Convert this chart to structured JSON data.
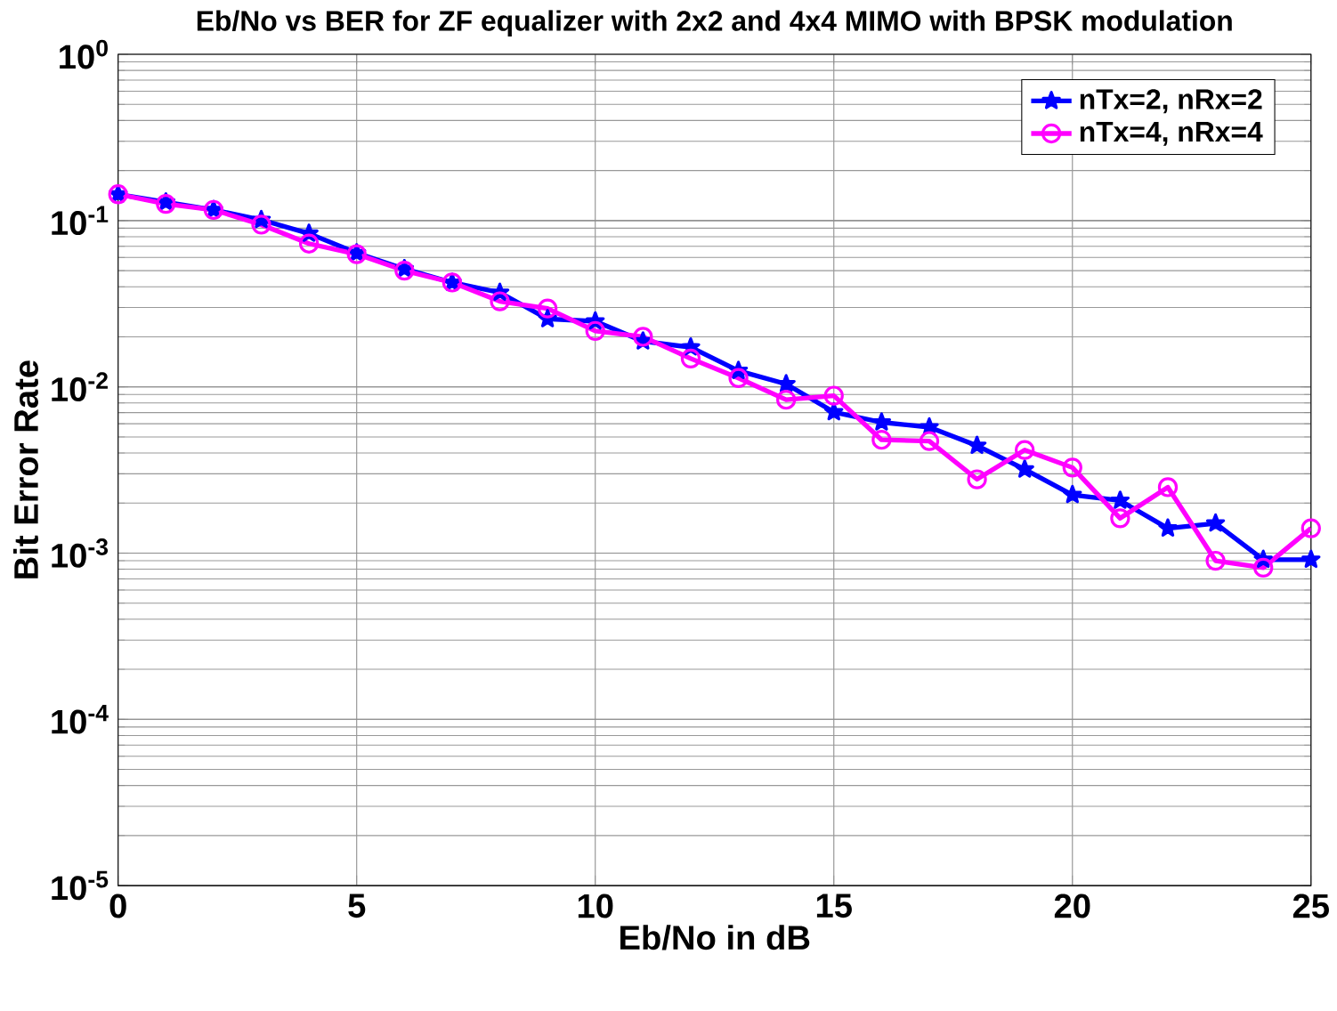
{
  "chart_data": {
    "type": "line",
    "title": "Eb/No vs BER for ZF equalizer with 2x2 and 4x4 MIMO with BPSK modulation",
    "xlabel": "Eb/No in dB",
    "ylabel": "Bit Error Rate",
    "x": [
      0,
      1,
      2,
      3,
      4,
      5,
      6,
      7,
      8,
      9,
      10,
      11,
      12,
      13,
      14,
      15,
      16,
      17,
      18,
      19,
      20,
      21,
      22,
      23,
      24,
      25
    ],
    "series": [
      {
        "name": "nTx=2, nRx=2",
        "color": "#0000ff",
        "marker": "star",
        "values": [
          0.144,
          0.129,
          0.116,
          0.101,
          0.0836,
          0.0638,
          0.0512,
          0.0424,
          0.0369,
          0.0256,
          0.0248,
          0.0188,
          0.0173,
          0.0125,
          0.0104,
          0.00705,
          0.00612,
          0.00572,
          0.00443,
          0.00319,
          0.00224,
          0.00207,
          0.00141,
          0.00151,
          0.000914,
          0.000914
        ]
      },
      {
        "name": "nTx=4, nRx=4",
        "color": "#ff00ff",
        "marker": "circle",
        "values": [
          0.144,
          0.126,
          0.116,
          0.0945,
          0.0727,
          0.0628,
          0.05,
          0.0424,
          0.0327,
          0.0296,
          0.0217,
          0.02,
          0.0148,
          0.0113,
          0.00836,
          0.00885,
          0.0048,
          0.00472,
          0.00278,
          0.00417,
          0.00327,
          0.00162,
          0.00249,
          0.0009,
          0.000817,
          0.00141
        ]
      }
    ],
    "log": "y",
    "xlim": [
      0,
      25
    ],
    "xticks": [
      0,
      5,
      10,
      15,
      20,
      25
    ],
    "ylim": [
      1e-05,
      1
    ],
    "yticks": [
      {
        "value": 1e-05,
        "label": "10$^{-5}$"
      },
      {
        "value": 0.0001,
        "label": "10$^{-4}$"
      },
      {
        "value": 0.001,
        "label": "10$^{-3}$"
      },
      {
        "value": 0.01,
        "label": "10$^{-2}$"
      },
      {
        "value": 0.1,
        "label": "10$^{-1}$"
      },
      {
        "value": 1,
        "label": "10$^{0}$"
      }
    ],
    "grid": true,
    "legend": "top right",
    "line_style": "solid"
  }
}
